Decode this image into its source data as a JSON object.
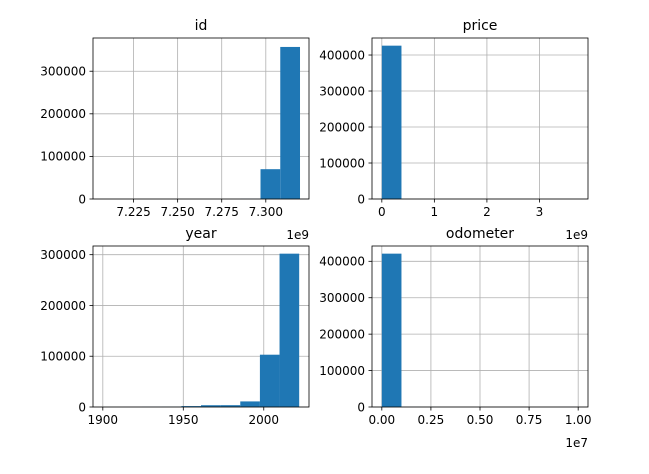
{
  "colors": {
    "bar": "#1f77b4",
    "grid": "#b0b0b0",
    "axis": "#000000"
  },
  "chart_data": [
    {
      "type": "bar",
      "title": "id",
      "bins": [
        {
          "x0": 7207400000.0,
          "x1": 7218600000.0,
          "value": 0
        },
        {
          "x0": 7218600000.0,
          "x1": 7229800000.0,
          "value": 0
        },
        {
          "x0": 7229800000.0,
          "x1": 7241000000.0,
          "value": 0
        },
        {
          "x0": 7241000000.0,
          "x1": 7252200000.0,
          "value": 0
        },
        {
          "x0": 7252200000.0,
          "x1": 7263400000.0,
          "value": 0
        },
        {
          "x0": 7263400000.0,
          "x1": 7274600000.0,
          "value": 0
        },
        {
          "x0": 7274600000.0,
          "x1": 7285800000.0,
          "value": 0
        },
        {
          "x0": 7285800000.0,
          "x1": 7297000000.0,
          "value": 300
        },
        {
          "x0": 7297000000.0,
          "x1": 7308200000.0,
          "value": 70000
        },
        {
          "x0": 7308200000.0,
          "x1": 7319400000.0,
          "value": 357000
        }
      ],
      "xlim": [
        7202000000.0,
        7324500000.0
      ],
      "ylim": [
        0,
        378000
      ],
      "xticks": [
        7225000000.0,
        7250000000.0,
        7275000000.0,
        7300000000.0
      ],
      "xtick_labels": [
        "7.225",
        "7.250",
        "7.275",
        "7.300"
      ],
      "yticks": [
        0,
        100000,
        200000,
        300000
      ],
      "ytick_labels": [
        "0",
        "100000",
        "200000",
        "300000"
      ],
      "offset_label": "1e9",
      "grid": true
    },
    {
      "type": "bar",
      "title": "price",
      "bins": [
        {
          "x0": 0,
          "x1": 373700000.0,
          "value": 426000
        },
        {
          "x0": 373700000.0,
          "x1": 747400000.0,
          "value": 0
        },
        {
          "x0": 747400000.0,
          "x1": 1121100000.0,
          "value": 0
        },
        {
          "x0": 1121100000.0,
          "x1": 1494800000.0,
          "value": 0
        },
        {
          "x0": 1494800000.0,
          "x1": 1868500000.0,
          "value": 0
        },
        {
          "x0": 1868500000.0,
          "x1": 2242200000.0,
          "value": 0
        },
        {
          "x0": 2242200000.0,
          "x1": 2615900000.0,
          "value": 0
        },
        {
          "x0": 2615900000.0,
          "x1": 2989600000.0,
          "value": 0
        },
        {
          "x0": 2989600000.0,
          "x1": 3363300000.0,
          "value": 0
        },
        {
          "x0": 3363300000.0,
          "x1": 3737000000.0,
          "value": 10
        }
      ],
      "xlim": [
        -187000000.0,
        3924000000.0
      ],
      "ylim": [
        0,
        447300
      ],
      "xticks": [
        0,
        1000000000.0,
        2000000000.0,
        3000000000.0
      ],
      "xtick_labels": [
        "0",
        "1",
        "2",
        "3"
      ],
      "yticks": [
        0,
        100000,
        200000,
        300000,
        400000
      ],
      "ytick_labels": [
        "0",
        "100000",
        "200000",
        "300000",
        "400000"
      ],
      "offset_label": "1e9",
      "grid": true
    },
    {
      "type": "bar",
      "title": "year",
      "bins": [
        {
          "x0": 1900,
          "x1": 1912.2,
          "value": 30
        },
        {
          "x0": 1912.2,
          "x1": 1924.4,
          "value": 90
        },
        {
          "x0": 1924.4,
          "x1": 1936.6,
          "value": 250
        },
        {
          "x0": 1936.6,
          "x1": 1948.8,
          "value": 400
        },
        {
          "x0": 1948.8,
          "x1": 1961.0,
          "value": 1800
        },
        {
          "x0": 1961.0,
          "x1": 1973.2,
          "value": 3500
        },
        {
          "x0": 1973.2,
          "x1": 1985.4,
          "value": 3600
        },
        {
          "x0": 1985.4,
          "x1": 1997.6,
          "value": 11000
        },
        {
          "x0": 1997.6,
          "x1": 2009.8,
          "value": 103000
        },
        {
          "x0": 2009.8,
          "x1": 2022.0,
          "value": 302000
        }
      ],
      "xlim": [
        1893.9,
        2028.1
      ],
      "ylim": [
        0,
        317100
      ],
      "xticks": [
        1900,
        1950,
        2000
      ],
      "xtick_labels": [
        "1900",
        "1950",
        "2000"
      ],
      "yticks": [
        0,
        100000,
        200000,
        300000
      ],
      "ytick_labels": [
        "0",
        "100000",
        "200000",
        "300000"
      ],
      "offset_label": "",
      "grid": true
    },
    {
      "type": "bar",
      "title": "odometer",
      "bins": [
        {
          "x0": 0,
          "x1": 1000000.0,
          "value": 421000
        },
        {
          "x0": 1000000.0,
          "x1": 2000000.0,
          "value": 300
        },
        {
          "x0": 2000000.0,
          "x1": 3000000.0,
          "value": 50
        },
        {
          "x0": 3000000.0,
          "x1": 4000000.0,
          "value": 30
        },
        {
          "x0": 4000000.0,
          "x1": 5000000.0,
          "value": 20
        },
        {
          "x0": 5000000.0,
          "x1": 6000000.0,
          "value": 10
        },
        {
          "x0": 6000000.0,
          "x1": 7000000.0,
          "value": 10
        },
        {
          "x0": 7000000.0,
          "x1": 8000000.0,
          "value": 10
        },
        {
          "x0": 8000000.0,
          "x1": 9000000.0,
          "value": 10
        },
        {
          "x0": 9000000.0,
          "x1": 10000000.0,
          "value": 100
        }
      ],
      "xlim": [
        -500000.0,
        10500000.0
      ],
      "ylim": [
        0,
        442000
      ],
      "xticks": [
        0,
        2500000.0,
        5000000.0,
        7500000.0,
        10000000.0
      ],
      "xtick_labels": [
        "0.00",
        "0.25",
        "0.50",
        "0.75",
        "1.00"
      ],
      "yticks": [
        0,
        100000,
        200000,
        300000,
        400000
      ],
      "ytick_labels": [
        "0",
        "100000",
        "200000",
        "300000",
        "400000"
      ],
      "offset_label": "1e7",
      "grid": true
    }
  ]
}
